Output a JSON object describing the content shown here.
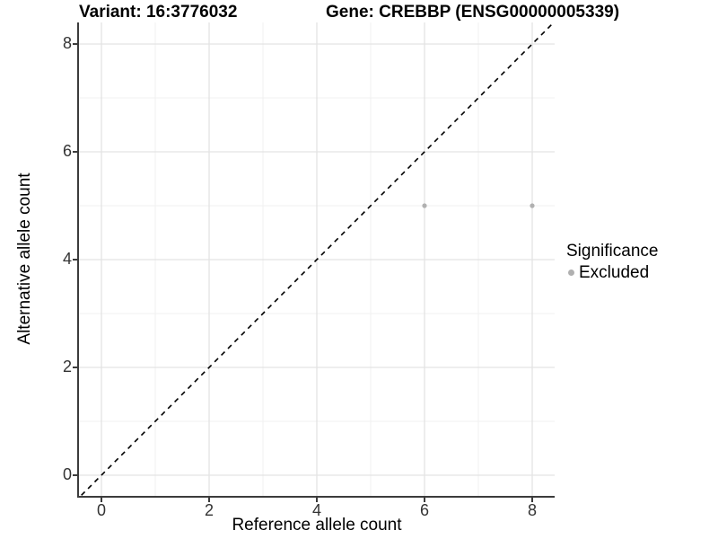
{
  "chart_data": {
    "type": "scatter",
    "title_left": "Variant: 16:3776032",
    "title_right": "Gene: CREBBP (ENSG00000005339)",
    "xlabel": "Reference allele count",
    "ylabel": "Alternative allele count",
    "xlim": [
      -0.42,
      8.42
    ],
    "ylim": [
      -0.42,
      8.42
    ],
    "x_axis": {
      "ticks": [
        0,
        2,
        4,
        6,
        8
      ],
      "tick_labels": [
        "0",
        "2",
        "4",
        "6",
        "8"
      ],
      "minor": [
        1,
        3,
        5,
        7
      ]
    },
    "y_axis": {
      "ticks": [
        0,
        2,
        4,
        6,
        8
      ],
      "tick_labels": [
        "0",
        "2",
        "4",
        "6",
        "8"
      ],
      "minor": [
        1,
        3,
        5,
        7
      ]
    },
    "series": [
      {
        "name": "Excluded",
        "color": "#b0b0b0",
        "points": [
          {
            "x": 6,
            "y": 5
          },
          {
            "x": 8,
            "y": 5
          }
        ]
      }
    ],
    "abline": {
      "slope": 1,
      "intercept": 0,
      "linetype": "dashed",
      "color": "#000000"
    },
    "grid": {
      "major_color": "#e3e3e3",
      "minor_color": "#f0f0f0",
      "background": "#ffffff"
    },
    "legend": {
      "position": "right",
      "title": "Significance",
      "entries": [
        {
          "label": "Excluded",
          "color": "#b0b0b0"
        }
      ]
    }
  }
}
